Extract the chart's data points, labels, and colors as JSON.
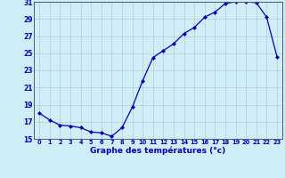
{
  "x": [
    0,
    1,
    2,
    3,
    4,
    5,
    6,
    7,
    8,
    9,
    10,
    11,
    12,
    13,
    14,
    15,
    16,
    17,
    18,
    19,
    20,
    21,
    22,
    23
  ],
  "y": [
    18.0,
    17.2,
    16.6,
    16.5,
    16.3,
    15.8,
    15.7,
    15.3,
    16.3,
    18.7,
    21.8,
    24.5,
    25.3,
    26.1,
    27.3,
    28.0,
    29.2,
    29.8,
    30.8,
    31.0,
    31.0,
    30.9,
    29.2,
    24.6
  ],
  "ylim": [
    15,
    31
  ],
  "xlim_min": -0.5,
  "xlim_max": 23.5,
  "yticks": [
    15,
    17,
    19,
    21,
    23,
    25,
    27,
    29,
    31
  ],
  "xtick_labels": [
    "0",
    "1",
    "2",
    "3",
    "4",
    "5",
    "6",
    "7",
    "8",
    "9",
    "10",
    "11",
    "12",
    "13",
    "14",
    "15",
    "16",
    "17",
    "18",
    "19",
    "20",
    "21",
    "22",
    "23"
  ],
  "xlabel": "Graphe des températures (°c)",
  "line_color": "#0000bb",
  "marker_color": "#0000bb",
  "bg_color": "#d0eef8",
  "grid_color": "#b0ccd8",
  "axis_label_color": "#0000bb",
  "tick_color": "#0000bb",
  "spine_color": "#555577"
}
